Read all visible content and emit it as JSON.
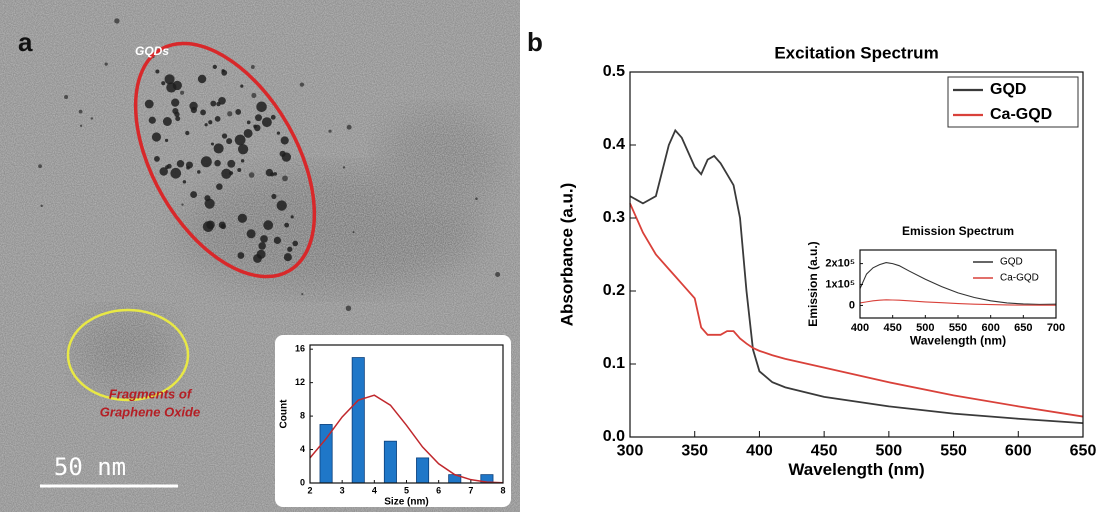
{
  "panel_a": {
    "label": "a",
    "gqd_label": "GQDs",
    "fragment_label": [
      "Fragments of",
      "Graphene Oxide"
    ],
    "scale_bar": "50 nm"
  },
  "panel_b": {
    "label": "b"
  },
  "chart_data": [
    {
      "type": "bar",
      "x": [
        2.5,
        3.5,
        4.5,
        5.5,
        6.5,
        7.5
      ],
      "values": [
        7,
        15,
        5,
        3,
        1,
        1
      ],
      "color": "#1f77c8",
      "fit": {
        "x": [
          2,
          2.5,
          3,
          3.5,
          4,
          4.5,
          5,
          5.5,
          6,
          6.5,
          7,
          7.5,
          8
        ],
        "values": [
          3.0,
          5.3,
          7.9,
          9.9,
          10.5,
          9.3,
          6.9,
          4.3,
          2.3,
          1.0,
          0.4,
          0.1,
          0.03
        ],
        "color": "#c0282d"
      },
      "x_label": "Size (nm)",
      "y_label": "Count",
      "xlim": [
        2,
        8
      ],
      "xticks": [
        2,
        3,
        4,
        5,
        6,
        7,
        8
      ],
      "ylim": [
        0,
        16.5
      ],
      "yticks": [
        0,
        4,
        8,
        12,
        16
      ]
    },
    {
      "type": "line",
      "title": "Excitation Spectrum",
      "x_label": "Wavelength (nm)",
      "y_label": "Absorbance (a.u.)",
      "x": [
        300,
        310,
        320,
        330,
        335,
        340,
        350,
        355,
        360,
        365,
        370,
        375,
        380,
        385,
        390,
        395,
        400,
        410,
        420,
        450,
        500,
        550,
        600,
        650
      ],
      "series": [
        {
          "name": "GQD",
          "color": "#3a3a3a",
          "values": [
            0.33,
            0.32,
            0.33,
            0.4,
            0.42,
            0.41,
            0.37,
            0.36,
            0.38,
            0.385,
            0.375,
            0.36,
            0.345,
            0.3,
            0.2,
            0.12,
            0.09,
            0.075,
            0.068,
            0.055,
            0.042,
            0.032,
            0.025,
            0.019
          ]
        },
        {
          "name": "Ca-GQD",
          "color": "#d9413a",
          "values": [
            0.32,
            0.28,
            0.25,
            0.23,
            0.22,
            0.21,
            0.19,
            0.15,
            0.14,
            0.14,
            0.14,
            0.145,
            0.145,
            0.135,
            0.128,
            0.122,
            0.118,
            0.112,
            0.107,
            0.095,
            0.075,
            0.057,
            0.042,
            0.028
          ]
        }
      ],
      "xlim": [
        300,
        650
      ],
      "xticks": [
        300,
        350,
        400,
        450,
        500,
        550,
        600,
        650
      ],
      "ylim": [
        0,
        0.5
      ],
      "yticks": [
        {
          "value": 0,
          "label": "0.0"
        },
        0.1,
        0.2,
        0.3,
        0.4,
        0.5
      ],
      "legend": "upper right"
    },
    {
      "type": "line",
      "title": "Emission Spectrum",
      "x_label": "Wavelength (nm)",
      "y_label": "Emission (a.u.)",
      "x": [
        400,
        410,
        420,
        430,
        440,
        450,
        460,
        475,
        500,
        525,
        550,
        575,
        600,
        625,
        650,
        675,
        700
      ],
      "series": [
        {
          "name": "GQD",
          "color": "#333333",
          "values": [
            80000,
            150000,
            180000,
            195000,
            205000,
            200000,
            190000,
            165000,
            125000,
            90000,
            60000,
            38000,
            22000,
            12000,
            7000,
            5000,
            6000
          ]
        },
        {
          "name": "Ca-GQD",
          "color": "#d9413a",
          "values": [
            12000,
            17000,
            22000,
            25000,
            27000,
            26000,
            25000,
            22000,
            17000,
            13000,
            9000,
            6000,
            4000,
            2500,
            1500,
            1000,
            1000
          ]
        }
      ],
      "xlim": [
        400,
        700
      ],
      "xticks": [
        400,
        450,
        500,
        550,
        600,
        650,
        700
      ],
      "ylim": [
        -60000,
        265000
      ],
      "yticks": [
        0,
        {
          "value": 100000,
          "label": "1x10⁵"
        },
        {
          "value": 200000,
          "label": "2x10⁵"
        }
      ],
      "legend": "upper right"
    }
  ]
}
